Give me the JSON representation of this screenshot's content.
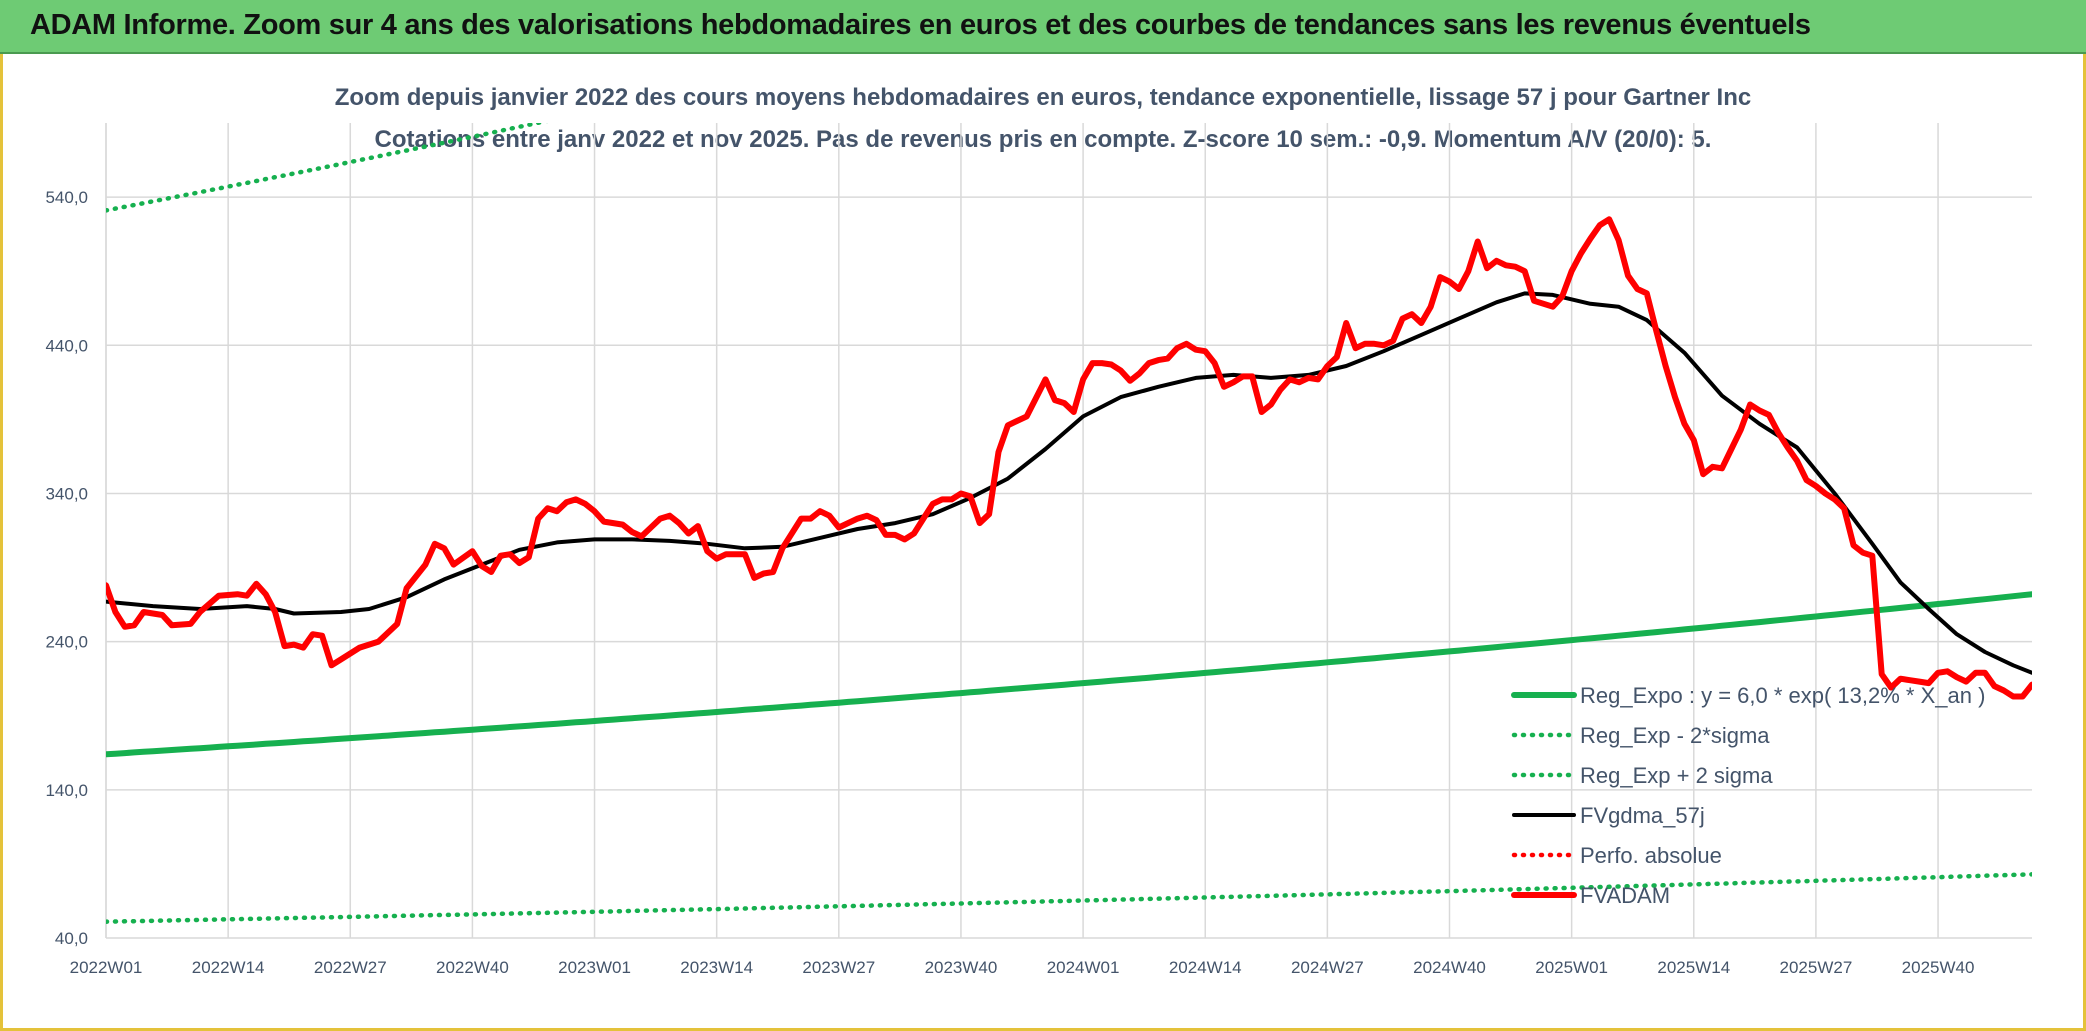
{
  "banner": {
    "title": "ADAM Informe. Zoom sur 4 ans des valorisations hebdomadaires en euros et des courbes de tendances sans les revenus éventuels"
  },
  "chart_data": {
    "type": "line",
    "title": "Zoom depuis janvier 2022 des cours moyens hebdomadaires en euros, tendance exponentielle, lissage 57 j pour Gartner Inc",
    "subtitle": "Cotations entre janv 2022 et nov 2025. Pas de revenus pris en compte. Z-score 10 sem.: -0,9. Momentum A/V (20/0): 5.",
    "ylim": [
      40,
      590
    ],
    "y_ticks": [
      "40,0",
      "140,0",
      "240,0",
      "340,0",
      "440,0",
      "540,0"
    ],
    "y_tick_values": [
      40,
      140,
      240,
      340,
      440,
      540
    ],
    "x_ticks": [
      "2022W01",
      "2022W14",
      "2022W27",
      "2022W40",
      "2023W01",
      "2023W14",
      "2023W27",
      "2023W40",
      "2024W01",
      "2024W14",
      "2024W27",
      "2024W40",
      "2025W01",
      "2025W14",
      "2025W27",
      "2025W40"
    ],
    "x_tick_weeks": [
      0,
      13,
      26,
      39,
      52,
      65,
      78,
      91,
      104,
      117,
      130,
      143,
      156,
      169,
      182,
      195
    ],
    "n_weeks": 206,
    "grid": "vertical and horizontal",
    "legend_position": "bottom-right",
    "series": [
      {
        "name": "Reg_Expo : y = 6,0 * exp( 13,2% * X_an )",
        "style": "solid-thick",
        "color": "#16b04f",
        "endpoints": [
          [
            0,
            164
          ],
          [
            205,
            272
          ]
        ]
      },
      {
        "name": "Reg_Exp - 2*sigma",
        "style": "dotted",
        "color": "#16b04f",
        "endpoints": [
          [
            0,
            51
          ],
          [
            205,
            83
          ]
        ]
      },
      {
        "name": "Reg_Exp + 2 sigma",
        "style": "dotted",
        "color": "#16b04f",
        "endpoints": [
          [
            0,
            531
          ],
          [
            205,
            850
          ]
        ]
      },
      {
        "name": "FVgdma_57j",
        "style": "solid",
        "color": "#000000",
        "points": [
          [
            0,
            267
          ],
          [
            5,
            264
          ],
          [
            10,
            262
          ],
          [
            15,
            264
          ],
          [
            18,
            262
          ],
          [
            20,
            259
          ],
          [
            25,
            260
          ],
          [
            28,
            262
          ],
          [
            32,
            270
          ],
          [
            36,
            282
          ],
          [
            40,
            292
          ],
          [
            44,
            302
          ],
          [
            48,
            307
          ],
          [
            52,
            309
          ],
          [
            56,
            309
          ],
          [
            60,
            308
          ],
          [
            64,
            306
          ],
          [
            68,
            303
          ],
          [
            72,
            304
          ],
          [
            76,
            310
          ],
          [
            80,
            316
          ],
          [
            84,
            320
          ],
          [
            88,
            326
          ],
          [
            92,
            337
          ],
          [
            96,
            350
          ],
          [
            100,
            370
          ],
          [
            104,
            392
          ],
          [
            108,
            405
          ],
          [
            112,
            412
          ],
          [
            116,
            418
          ],
          [
            120,
            420
          ],
          [
            124,
            418
          ],
          [
            128,
            420
          ],
          [
            132,
            426
          ],
          [
            136,
            436
          ],
          [
            140,
            447
          ],
          [
            144,
            458
          ],
          [
            148,
            469
          ],
          [
            151,
            475
          ],
          [
            154,
            474
          ],
          [
            158,
            468
          ],
          [
            161,
            466
          ],
          [
            164,
            457
          ],
          [
            168,
            435
          ],
          [
            172,
            406
          ],
          [
            176,
            387
          ],
          [
            180,
            371
          ],
          [
            184,
            340
          ],
          [
            188,
            306
          ],
          [
            191,
            280
          ],
          [
            194,
            262
          ],
          [
            197,
            245
          ],
          [
            200,
            233
          ],
          [
            203,
            224
          ],
          [
            205,
            219
          ]
        ]
      },
      {
        "name": "Perfo. absolue",
        "style": "dotted",
        "color": "#ff0000",
        "points": []
      },
      {
        "name": "FVADAM",
        "style": "solid-thick",
        "color": "#ff0000",
        "points": [
          [
            0,
            278
          ],
          [
            1,
            260
          ],
          [
            2,
            250
          ],
          [
            3,
            251
          ],
          [
            4,
            260
          ],
          [
            6,
            258
          ],
          [
            7,
            251
          ],
          [
            9,
            252
          ],
          [
            10,
            260
          ],
          [
            12,
            271
          ],
          [
            14,
            272
          ],
          [
            15,
            271
          ],
          [
            16,
            279
          ],
          [
            17,
            272
          ],
          [
            18,
            260
          ],
          [
            19,
            237
          ],
          [
            20,
            238
          ],
          [
            21,
            236
          ],
          [
            22,
            245
          ],
          [
            23,
            244
          ],
          [
            24,
            224
          ],
          [
            25,
            228
          ],
          [
            27,
            236
          ],
          [
            29,
            240
          ],
          [
            31,
            252
          ],
          [
            32,
            276
          ],
          [
            34,
            292
          ],
          [
            35,
            306
          ],
          [
            36,
            303
          ],
          [
            37,
            292
          ],
          [
            39,
            301
          ],
          [
            40,
            291
          ],
          [
            41,
            287
          ],
          [
            42,
            298
          ],
          [
            43,
            299
          ],
          [
            44,
            293
          ],
          [
            45,
            297
          ],
          [
            46,
            323
          ],
          [
            47,
            330
          ],
          [
            48,
            328
          ],
          [
            49,
            334
          ],
          [
            50,
            336
          ],
          [
            51,
            333
          ],
          [
            52,
            328
          ],
          [
            53,
            321
          ],
          [
            55,
            319
          ],
          [
            56,
            314
          ],
          [
            57,
            311
          ],
          [
            58,
            317
          ],
          [
            59,
            323
          ],
          [
            60,
            325
          ],
          [
            61,
            320
          ],
          [
            62,
            313
          ],
          [
            63,
            318
          ],
          [
            64,
            301
          ],
          [
            65,
            296
          ],
          [
            66,
            299
          ],
          [
            68,
            299
          ],
          [
            69,
            283
          ],
          [
            70,
            286
          ],
          [
            71,
            287
          ],
          [
            72,
            303
          ],
          [
            74,
            323
          ],
          [
            75,
            323
          ],
          [
            76,
            328
          ],
          [
            77,
            325
          ],
          [
            78,
            317
          ],
          [
            80,
            323
          ],
          [
            81,
            325
          ],
          [
            82,
            322
          ],
          [
            83,
            312
          ],
          [
            84,
            312
          ],
          [
            85,
            309
          ],
          [
            86,
            313
          ],
          [
            87,
            323
          ],
          [
            88,
            333
          ],
          [
            89,
            336
          ],
          [
            90,
            336
          ],
          [
            91,
            340
          ],
          [
            92,
            338
          ],
          [
            93,
            320
          ],
          [
            94,
            326
          ],
          [
            95,
            368
          ],
          [
            96,
            386
          ],
          [
            98,
            392
          ],
          [
            100,
            417
          ],
          [
            101,
            403
          ],
          [
            102,
            401
          ],
          [
            103,
            395
          ],
          [
            104,
            417
          ],
          [
            105,
            428
          ],
          [
            106,
            428
          ],
          [
            107,
            427
          ],
          [
            108,
            423
          ],
          [
            109,
            416
          ],
          [
            110,
            421
          ],
          [
            111,
            428
          ],
          [
            112,
            430
          ],
          [
            113,
            431
          ],
          [
            114,
            438
          ],
          [
            115,
            441
          ],
          [
            116,
            437
          ],
          [
            117,
            436
          ],
          [
            118,
            428
          ],
          [
            119,
            412
          ],
          [
            120,
            415
          ],
          [
            121,
            419
          ],
          [
            122,
            419
          ],
          [
            123,
            395
          ],
          [
            124,
            400
          ],
          [
            125,
            410
          ],
          [
            126,
            417
          ],
          [
            127,
            415
          ],
          [
            128,
            418
          ],
          [
            129,
            417
          ],
          [
            130,
            426
          ],
          [
            131,
            432
          ],
          [
            132,
            455
          ],
          [
            133,
            438
          ],
          [
            134,
            441
          ],
          [
            135,
            441
          ],
          [
            136,
            440
          ],
          [
            137,
            443
          ],
          [
            138,
            458
          ],
          [
            139,
            461
          ],
          [
            140,
            455
          ],
          [
            141,
            466
          ],
          [
            142,
            486
          ],
          [
            143,
            483
          ],
          [
            144,
            478
          ],
          [
            145,
            490
          ],
          [
            146,
            510
          ],
          [
            147,
            492
          ],
          [
            148,
            497
          ],
          [
            149,
            494
          ],
          [
            150,
            493
          ],
          [
            151,
            490
          ],
          [
            152,
            470
          ],
          [
            154,
            466
          ],
          [
            155,
            473
          ],
          [
            156,
            490
          ],
          [
            157,
            502
          ],
          [
            158,
            512
          ],
          [
            159,
            521
          ],
          [
            160,
            525
          ],
          [
            161,
            511
          ],
          [
            162,
            487
          ],
          [
            163,
            478
          ],
          [
            164,
            475
          ],
          [
            165,
            450
          ],
          [
            166,
            426
          ],
          [
            167,
            405
          ],
          [
            168,
            387
          ],
          [
            169,
            376
          ],
          [
            170,
            353
          ],
          [
            171,
            358
          ],
          [
            172,
            357
          ],
          [
            173,
            370
          ],
          [
            174,
            383
          ],
          [
            175,
            400
          ],
          [
            176,
            396
          ],
          [
            177,
            393
          ],
          [
            178,
            381
          ],
          [
            179,
            371
          ],
          [
            180,
            362
          ],
          [
            181,
            349
          ],
          [
            182,
            345
          ],
          [
            183,
            340
          ],
          [
            184,
            336
          ],
          [
            185,
            330
          ],
          [
            186,
            305
          ],
          [
            187,
            300
          ],
          [
            188,
            298
          ],
          [
            189,
            218
          ],
          [
            190,
            209
          ],
          [
            191,
            215
          ],
          [
            192,
            214
          ],
          [
            193,
            213
          ],
          [
            194,
            212
          ],
          [
            195,
            219
          ],
          [
            196,
            220
          ],
          [
            197,
            216
          ],
          [
            198,
            213
          ],
          [
            199,
            219
          ],
          [
            200,
            219
          ],
          [
            201,
            210
          ],
          [
            202,
            207
          ],
          [
            203,
            203
          ],
          [
            204,
            203
          ],
          [
            205,
            211
          ]
        ]
      }
    ]
  }
}
